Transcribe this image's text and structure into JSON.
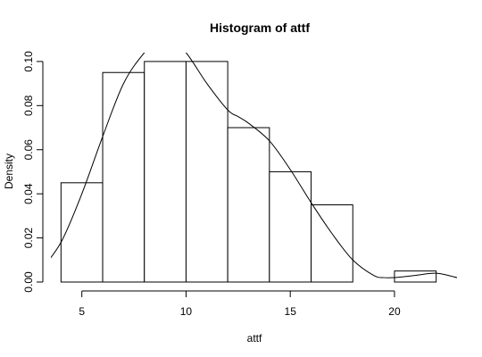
{
  "chart_data": {
    "type": "bar",
    "title": "Histogram of attf",
    "xlabel": "attf",
    "ylabel": "Density",
    "bins": [
      {
        "from": 4,
        "to": 6,
        "density": 0.045
      },
      {
        "from": 6,
        "to": 8,
        "density": 0.095
      },
      {
        "from": 8,
        "to": 10,
        "density": 0.1
      },
      {
        "from": 10,
        "to": 12,
        "density": 0.1
      },
      {
        "from": 12,
        "to": 14,
        "density": 0.07
      },
      {
        "from": 14,
        "to": 16,
        "density": 0.05
      },
      {
        "from": 16,
        "to": 18,
        "density": 0.035
      },
      {
        "from": 18,
        "to": 20,
        "density": 0.0
      },
      {
        "from": 20,
        "to": 22,
        "density": 0.005
      }
    ],
    "density_curve": {
      "x": [
        3.0,
        4.0,
        5.0,
        6.0,
        7.0,
        8.0,
        9.0,
        10.0,
        11.0,
        12.0,
        12.5,
        13.0,
        14.0,
        15.0,
        16.0,
        17.0,
        18.0,
        19.0,
        19.5,
        20.0,
        21.0,
        22.0,
        23.0
      ],
      "y": [
        0.005,
        0.018,
        0.04,
        0.066,
        0.09,
        0.104,
        0.113,
        0.104,
        0.09,
        0.078,
        0.075,
        0.072,
        0.064,
        0.051,
        0.036,
        0.022,
        0.01,
        0.003,
        0.002,
        0.002,
        0.003,
        0.004,
        0.002
      ]
    },
    "x_ticks": [
      "5",
      "10",
      "15",
      "20"
    ],
    "y_ticks": [
      "0.00",
      "0.02",
      "0.04",
      "0.06",
      "0.08",
      "0.10"
    ],
    "xlim": [
      3.6,
      23.0
    ],
    "ylim": [
      0,
      0.104
    ],
    "grid": false
  }
}
